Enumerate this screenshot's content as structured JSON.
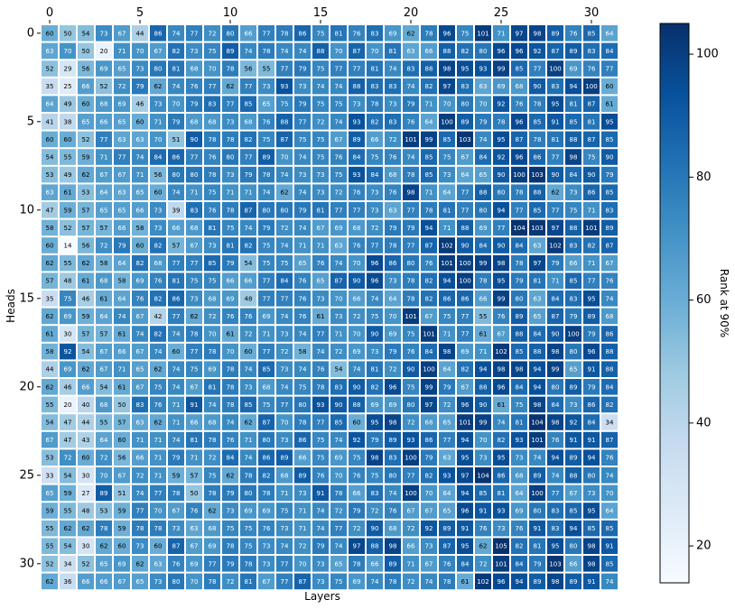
{
  "chart_data": {
    "type": "heatmap",
    "title": "",
    "xlabel": "Layers",
    "ylabel": "Heads",
    "x_ticks": [
      0,
      5,
      10,
      15,
      20,
      25,
      30
    ],
    "y_ticks": [
      0,
      5,
      10,
      15,
      20,
      25,
      30
    ],
    "colorbar": {
      "label": "Rank at 90%",
      "min": 14,
      "max": 105,
      "ticks": [
        20,
        40,
        60,
        80,
        100
      ],
      "colormap": "Blues",
      "colors": [
        "#f7fbff",
        "#deebf7",
        "#c6dbef",
        "#9ecae1",
        "#6baed6",
        "#4292c6",
        "#2171b5",
        "#08519c",
        "#08306b"
      ]
    },
    "values": [
      [
        60,
        50,
        54,
        73,
        67,
        44,
        86,
        74,
        77,
        72,
        80,
        66,
        77,
        78,
        86,
        75,
        81,
        76,
        83,
        69,
        62,
        78,
        96,
        75,
        101,
        71,
        97,
        98,
        89,
        76,
        85,
        64
      ],
      [
        63,
        70,
        50,
        20,
        71,
        70,
        67,
        82,
        73,
        75,
        89,
        74,
        78,
        74,
        74,
        88,
        70,
        87,
        70,
        81,
        63,
        66,
        88,
        82,
        80,
        96,
        96,
        92,
        87,
        89,
        83,
        84
      ],
      [
        52,
        29,
        56,
        69,
        65,
        73,
        80,
        81,
        68,
        70,
        78,
        56,
        55,
        77,
        79,
        75,
        77,
        77,
        81,
        74,
        83,
        88,
        98,
        95,
        93,
        99,
        85,
        77,
        100,
        69,
        76,
        77
      ],
      [
        35,
        25,
        66,
        52,
        72,
        79,
        62,
        74,
        76,
        77,
        62,
        77,
        73,
        93,
        73,
        74,
        74,
        88,
        83,
        83,
        74,
        82,
        97,
        83,
        63,
        69,
        68,
        90,
        83,
        94,
        100,
        60
      ],
      [
        64,
        49,
        60,
        68,
        69,
        46,
        73,
        70,
        79,
        83,
        77,
        85,
        65,
        75,
        79,
        75,
        75,
        73,
        78,
        73,
        79,
        71,
        70,
        80,
        70,
        92,
        76,
        78,
        95,
        81,
        87,
        61
      ],
      [
        41,
        38,
        65,
        66,
        65,
        60,
        71,
        79,
        68,
        68,
        73,
        68,
        76,
        88,
        77,
        72,
        74,
        93,
        82,
        83,
        76,
        64,
        100,
        89,
        79,
        78,
        96,
        85,
        91,
        85,
        81,
        95
      ],
      [
        60,
        60,
        52,
        77,
        63,
        63,
        70,
        51,
        90,
        78,
        78,
        82,
        75,
        87,
        75,
        75,
        67,
        89,
        66,
        72,
        101,
        99,
        85,
        103,
        74,
        95,
        87,
        78,
        81,
        88,
        87,
        85
      ],
      [
        54,
        55,
        59,
        71,
        77,
        74,
        84,
        86,
        77,
        76,
        80,
        77,
        89,
        70,
        74,
        75,
        76,
        84,
        75,
        76,
        74,
        85,
        75,
        67,
        84,
        92,
        96,
        86,
        77,
        98,
        75,
        90
      ],
      [
        53,
        49,
        62,
        67,
        67,
        71,
        56,
        80,
        80,
        78,
        73,
        79,
        78,
        74,
        73,
        73,
        75,
        93,
        84,
        68,
        78,
        85,
        73,
        64,
        65,
        90,
        100,
        103,
        90,
        84,
        90,
        79
      ],
      [
        63,
        61,
        53,
        64,
        63,
        65,
        60,
        74,
        71,
        75,
        71,
        71,
        74,
        62,
        74,
        73,
        72,
        76,
        73,
        76,
        98,
        71,
        64,
        77,
        88,
        80,
        78,
        88,
        62,
        73,
        86,
        85
      ],
      [
        47,
        59,
        57,
        65,
        65,
        66,
        73,
        39,
        83,
        76,
        78,
        87,
        80,
        80,
        79,
        81,
        77,
        77,
        73,
        63,
        77,
        78,
        81,
        77,
        80,
        94,
        77,
        85,
        77,
        75,
        71,
        83
      ],
      [
        58,
        52,
        57,
        57,
        66,
        58,
        73,
        66,
        68,
        81,
        75,
        74,
        79,
        72,
        74,
        67,
        69,
        68,
        72,
        79,
        79,
        94,
        71,
        88,
        69,
        77,
        104,
        103,
        97,
        88,
        101,
        89
      ],
      [
        60,
        14,
        56,
        72,
        79,
        60,
        82,
        57,
        67,
        73,
        81,
        82,
        75,
        74,
        71,
        71,
        63,
        76,
        77,
        78,
        77,
        87,
        102,
        90,
        84,
        90,
        84,
        63,
        102,
        83,
        82,
        87
      ],
      [
        62,
        55,
        62,
        58,
        64,
        82,
        68,
        77,
        77,
        85,
        79,
        54,
        75,
        75,
        65,
        76,
        74,
        70,
        96,
        86,
        80,
        76,
        101,
        100,
        99,
        98,
        78,
        97,
        79,
        66,
        71,
        67
      ],
      [
        57,
        48,
        61,
        68,
        58,
        69,
        76,
        81,
        75,
        75,
        66,
        66,
        77,
        84,
        76,
        65,
        87,
        90,
        96,
        73,
        78,
        82,
        94,
        100,
        78,
        95,
        79,
        81,
        71,
        85,
        77,
        76
      ],
      [
        35,
        75,
        46,
        61,
        64,
        76,
        82,
        86,
        73,
        68,
        69,
        48,
        77,
        77,
        76,
        73,
        70,
        66,
        74,
        64,
        78,
        82,
        86,
        86,
        66,
        99,
        80,
        63,
        84,
        83,
        95,
        74
      ],
      [
        62,
        69,
        59,
        64,
        74,
        67,
        42,
        77,
        62,
        72,
        76,
        76,
        69,
        74,
        76,
        61,
        73,
        72,
        75,
        70,
        101,
        67,
        75,
        77,
        55,
        76,
        89,
        65,
        87,
        79,
        89,
        68
      ],
      [
        61,
        30,
        57,
        57,
        61,
        74,
        82,
        74,
        78,
        70,
        61,
        72,
        71,
        73,
        74,
        77,
        71,
        70,
        90,
        69,
        75,
        101,
        71,
        77,
        61,
        67,
        88,
        84,
        90,
        100,
        79,
        86
      ],
      [
        58,
        92,
        54,
        67,
        66,
        67,
        74,
        60,
        77,
        78,
        70,
        60,
        77,
        72,
        58,
        74,
        72,
        69,
        73,
        79,
        76,
        84,
        98,
        69,
        71,
        102,
        85,
        88,
        98,
        80,
        96,
        88
      ],
      [
        44,
        69,
        62,
        67,
        71,
        65,
        62,
        74,
        75,
        69,
        78,
        74,
        85,
        73,
        74,
        76,
        54,
        74,
        81,
        72,
        90,
        100,
        64,
        82,
        94,
        98,
        98,
        94,
        99,
        65,
        91,
        88
      ],
      [
        62,
        46,
        66,
        54,
        61,
        67,
        75,
        74,
        67,
        81,
        78,
        73,
        68,
        74,
        75,
        78,
        83,
        90,
        82,
        96,
        75,
        99,
        79,
        67,
        88,
        96,
        84,
        94,
        80,
        89,
        79,
        84
      ],
      [
        55,
        20,
        40,
        68,
        50,
        83,
        76,
        71,
        91,
        74,
        78,
        85,
        75,
        77,
        80,
        93,
        90,
        88,
        69,
        69,
        80,
        97,
        72,
        96,
        90,
        61,
        75,
        98,
        84,
        73,
        86,
        82
      ],
      [
        54,
        47,
        44,
        55,
        57,
        63,
        62,
        71,
        66,
        68,
        74,
        62,
        87,
        70,
        78,
        77,
        85,
        60,
        95,
        98,
        72,
        68,
        65,
        101,
        99,
        74,
        81,
        104,
        98,
        92,
        84,
        34
      ],
      [
        67,
        47,
        43,
        64,
        60,
        71,
        71,
        74,
        81,
        78,
        76,
        71,
        80,
        73,
        86,
        75,
        74,
        92,
        79,
        89,
        93,
        86,
        77,
        94,
        70,
        82,
        93,
        101,
        76,
        91,
        91,
        87
      ],
      [
        53,
        72,
        60,
        72,
        56,
        66,
        71,
        79,
        71,
        72,
        84,
        74,
        86,
        89,
        66,
        75,
        69,
        75,
        98,
        83,
        100,
        79,
        63,
        95,
        73,
        95,
        73,
        74,
        94,
        89,
        94,
        76
      ],
      [
        33,
        54,
        30,
        70,
        67,
        72,
        71,
        59,
        57,
        75,
        62,
        78,
        82,
        68,
        89,
        76,
        70,
        76,
        75,
        80,
        77,
        82,
        93,
        97,
        104,
        86,
        68,
        89,
        74,
        88,
        80,
        74
      ],
      [
        65,
        59,
        27,
        89,
        51,
        74,
        77,
        78,
        50,
        78,
        79,
        80,
        78,
        71,
        73,
        91,
        78,
        66,
        83,
        74,
        100,
        70,
        64,
        94,
        85,
        81,
        64,
        100,
        77,
        67,
        73,
        70
      ],
      [
        59,
        55,
        48,
        53,
        59,
        77,
        70,
        67,
        76,
        62,
        73,
        69,
        69,
        75,
        71,
        74,
        72,
        79,
        72,
        76,
        67,
        67,
        65,
        96,
        91,
        93,
        69,
        80,
        83,
        85,
        95,
        64
      ],
      [
        55,
        62,
        62,
        78,
        59,
        78,
        78,
        73,
        63,
        68,
        75,
        75,
        76,
        73,
        71,
        74,
        77,
        72,
        90,
        68,
        72,
        92,
        89,
        91,
        76,
        73,
        76,
        91,
        83,
        94,
        85,
        85
      ],
      [
        55,
        54,
        30,
        62,
        60,
        73,
        60,
        87,
        67,
        69,
        78,
        75,
        73,
        74,
        72,
        79,
        74,
        97,
        88,
        98,
        66,
        73,
        87,
        95,
        62,
        105,
        82,
        81,
        95,
        80,
        98,
        91
      ],
      [
        52,
        34,
        52,
        65,
        69,
        62,
        63,
        76,
        69,
        77,
        79,
        78,
        73,
        77,
        70,
        73,
        65,
        78,
        66,
        89,
        71,
        67,
        76,
        84,
        72,
        101,
        84,
        79,
        103,
        66,
        98,
        85
      ],
      [
        62,
        36,
        66,
        66,
        67,
        65,
        73,
        80,
        70,
        78,
        72,
        81,
        67,
        77,
        87,
        73,
        75,
        69,
        74,
        78,
        72,
        74,
        78,
        61,
        102,
        96,
        94,
        89,
        98,
        89,
        91,
        74
      ]
    ]
  }
}
